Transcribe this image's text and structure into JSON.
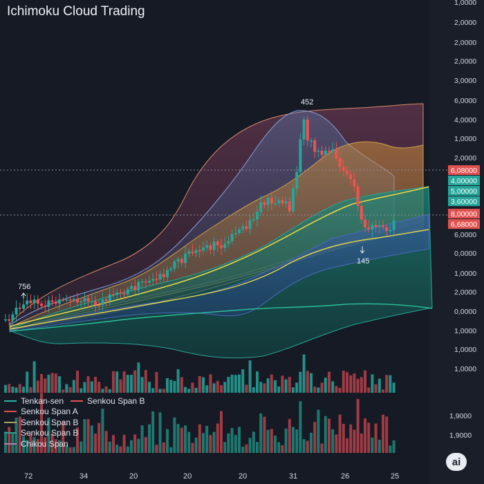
{
  "chart_data": {
    "type": "candlestick",
    "title": "Ichimoku Cloud Trading",
    "x_tick_labels": [
      "72",
      "34",
      "20",
      "20",
      "20",
      "31",
      "26",
      "25"
    ],
    "y_tick_labels": [
      "1,0000",
      "2,0000",
      "2,0000",
      "2,0000",
      "3,0000",
      "6,0000",
      "4,0000",
      "1,0000",
      "2,0000",
      "6,0000",
      "4,0000",
      "5,0000",
      "3,0000",
      "8,0000",
      "6,0000",
      "6,0000",
      "0,0000",
      "1,0000",
      "2,0000",
      "0,0000",
      "1,0000",
      "1,0000",
      "1,0000"
    ],
    "price_tags": [
      {
        "label": "6,08000",
        "color": "#e0524f"
      },
      {
        "label": "4,00000",
        "color": "#26a69a"
      },
      {
        "label": "5,00000",
        "color": "#26a69a"
      },
      {
        "label": "3,60000",
        "color": "#26a69a"
      },
      {
        "label": "8,00000",
        "color": "#e0524f"
      },
      {
        "label": "6,68000",
        "color": "#e0524f"
      }
    ],
    "volume_tick_labels": [
      "1,9000",
      "1,9000"
    ],
    "annotations": [
      {
        "text": "756"
      },
      {
        "text": "452"
      },
      {
        "text": "145"
      }
    ],
    "legend": [
      {
        "name": "Tenkan-sen",
        "color": "#2bb5a5"
      },
      {
        "name": "Senkou Span B",
        "color": "#e0524f"
      },
      {
        "name": "Senkou Span A",
        "color": "#e0524f"
      },
      {
        "name": "Senkou Span B",
        "color": "#a3a35a"
      },
      {
        "name": "Senkou Span B",
        "color": "#2e9e8c"
      },
      {
        "name": "Chikou Span",
        "color": "#b07fb0"
      }
    ],
    "colors": {
      "up": "#26a69a",
      "down": "#ef5350",
      "background": "#161a25"
    }
  },
  "badge": "ai"
}
